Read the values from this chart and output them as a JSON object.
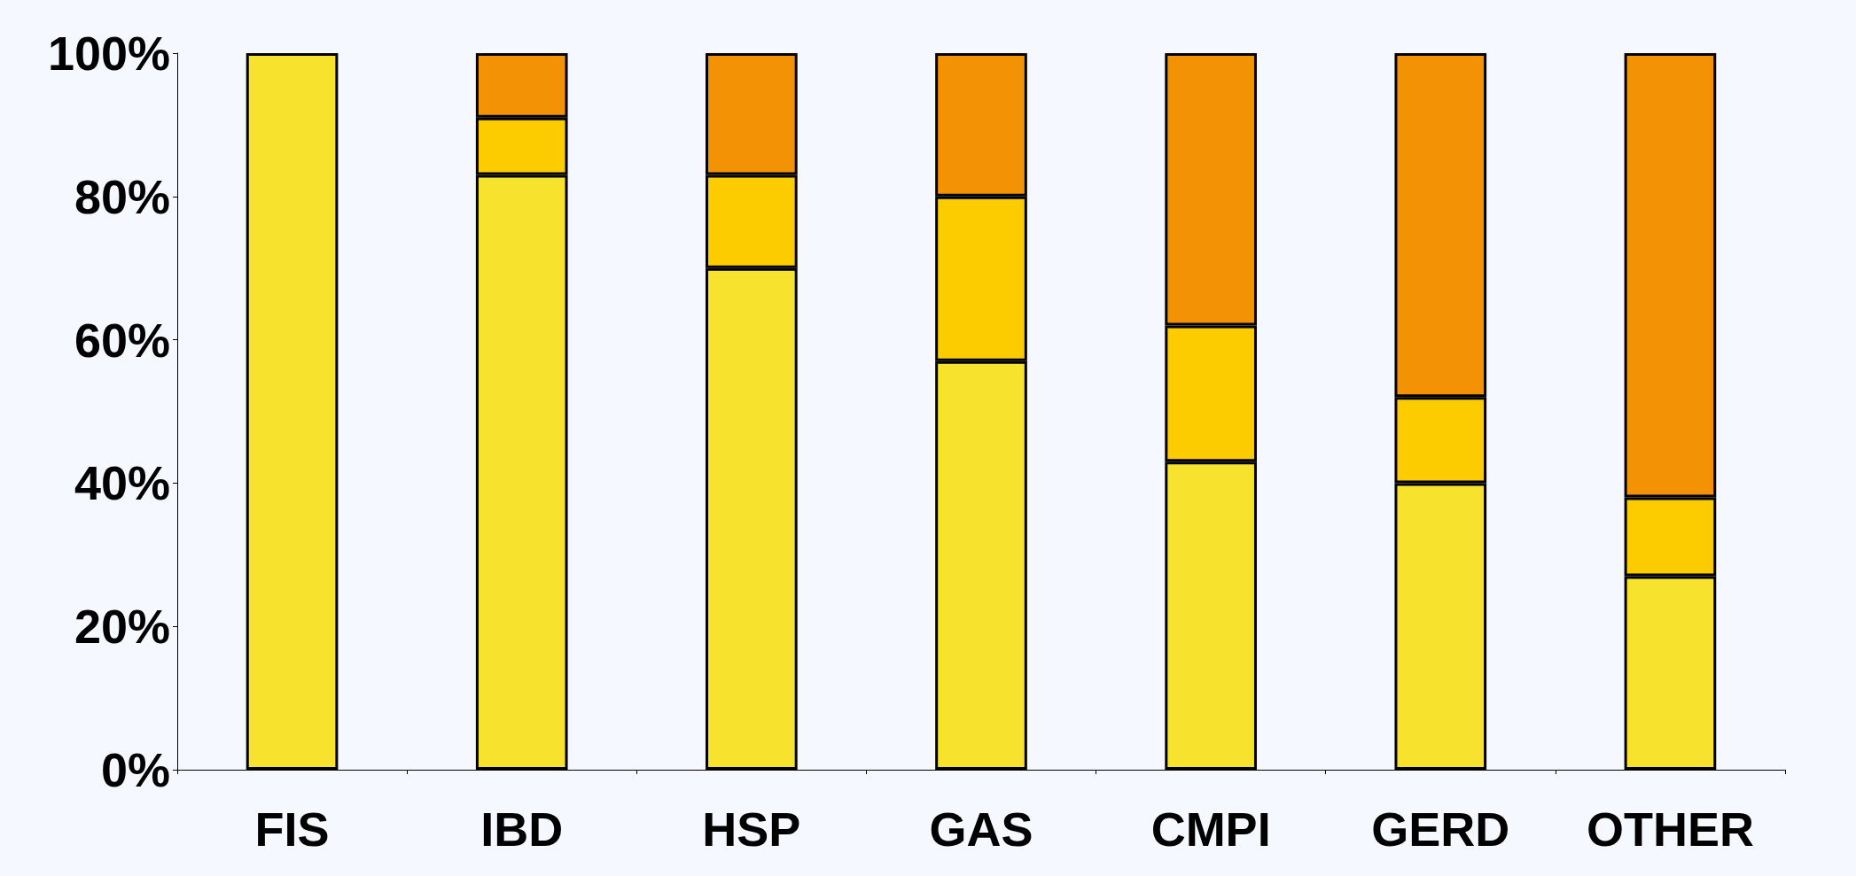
{
  "chart_data": {
    "type": "bar",
    "stacked": true,
    "categories": [
      "FIS",
      "IBD",
      "HSP",
      "GAS",
      "CMPI",
      "GERD",
      "OTHER"
    ],
    "series": [
      {
        "color": "#f7e22e",
        "values": [
          100,
          83,
          70,
          57,
          43,
          40,
          27
        ]
      },
      {
        "color": "#fccb00",
        "values": [
          0,
          8,
          13,
          23,
          19,
          12,
          11
        ]
      },
      {
        "color": "#f39204",
        "values": [
          0,
          9,
          17,
          20,
          38,
          48,
          62
        ]
      }
    ],
    "ylim": [
      0,
      100
    ],
    "yticks": [
      {
        "value": 0,
        "label": "0%"
      },
      {
        "value": 20,
        "label": "20%"
      },
      {
        "value": 40,
        "label": "40%"
      },
      {
        "value": 60,
        "label": "60%"
      },
      {
        "value": 80,
        "label": "80%"
      },
      {
        "value": 100,
        "label": "100%"
      }
    ],
    "grid": false
  }
}
